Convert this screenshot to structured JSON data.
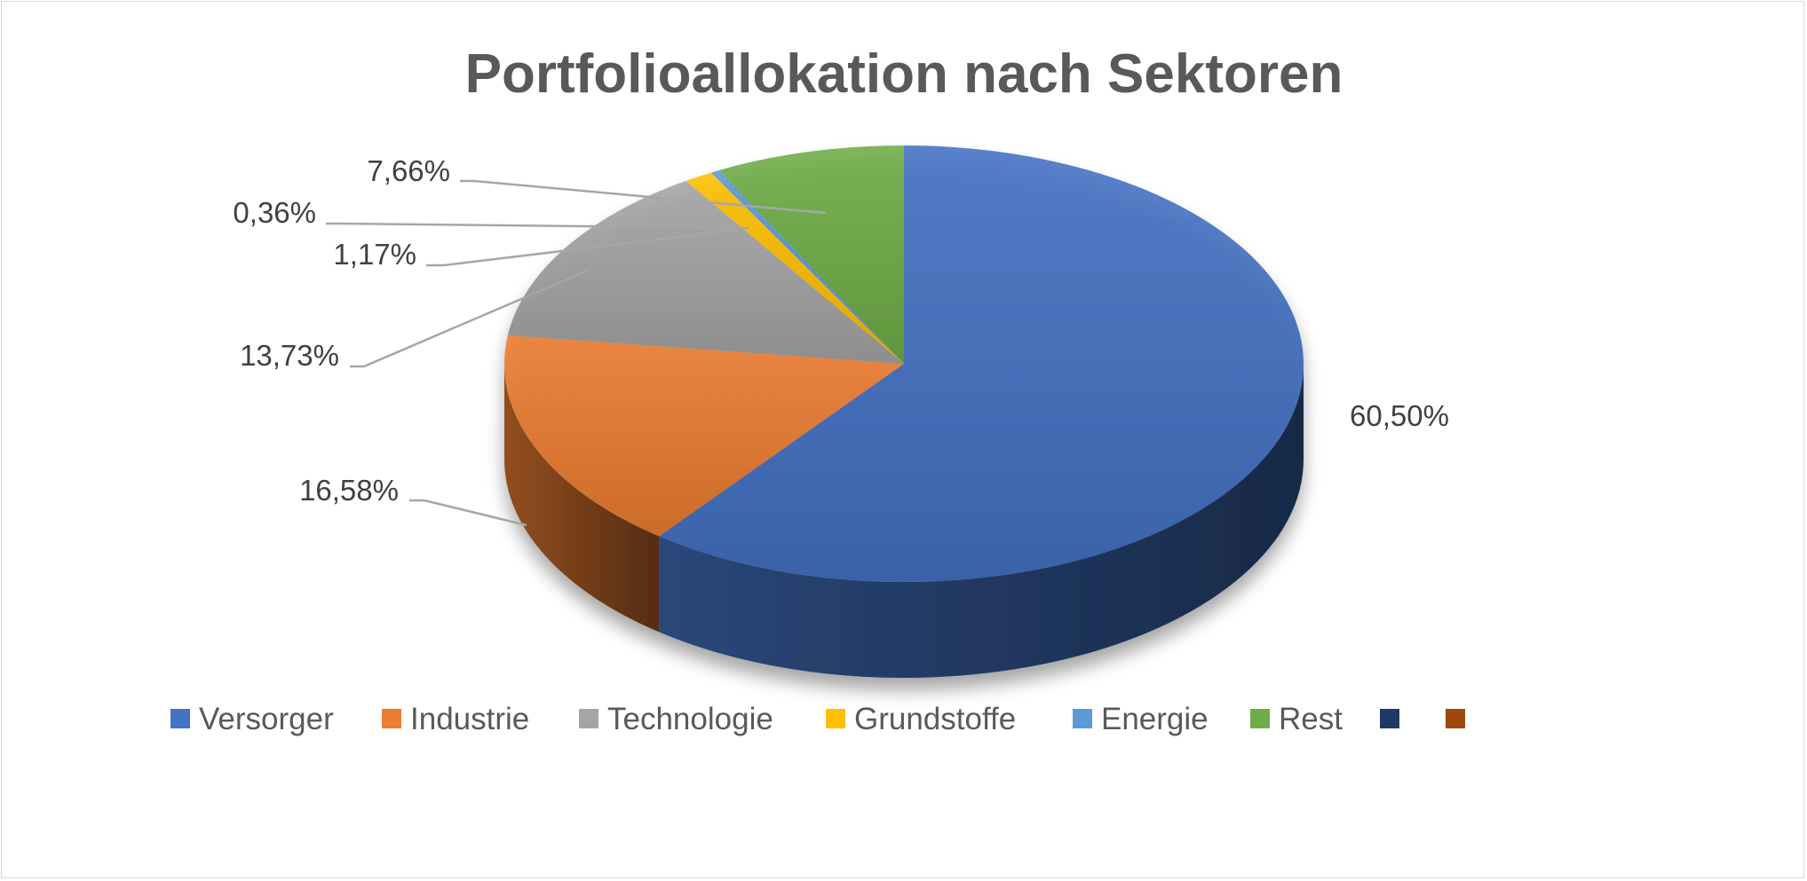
{
  "chart_data": {
    "type": "pie",
    "style": "3d",
    "title": "Portfolioallokation nach Sektoren",
    "categories": [
      "Versorger",
      "Industrie",
      "Technologie",
      "Grundstoffe",
      "Energie",
      "Rest"
    ],
    "values": [
      60.5,
      16.58,
      13.73,
      1.17,
      0.36,
      7.66
    ],
    "data_labels": [
      "60,50%",
      "16,58%",
      "13,73%",
      "1,17%",
      "0,36%",
      "7,66%"
    ],
    "colors": [
      "#4472c4",
      "#ed7d31",
      "#a5a5a5",
      "#ffc000",
      "#5b9bd5",
      "#70ad47"
    ],
    "legend": {
      "position": "bottom",
      "entries": [
        {
          "label": "Versorger",
          "color": "#4472c4"
        },
        {
          "label": "Industrie",
          "color": "#ed7d31"
        },
        {
          "label": "Technologie",
          "color": "#a5a5a5"
        },
        {
          "label": "Grundstoffe",
          "color": "#ffc000"
        },
        {
          "label": "Energie",
          "color": "#5b9bd5"
        },
        {
          "label": "Rest",
          "color": "#70ad47"
        },
        {
          "label": "",
          "color": "#203864"
        },
        {
          "label": "",
          "color": "#9e480e"
        }
      ]
    }
  }
}
